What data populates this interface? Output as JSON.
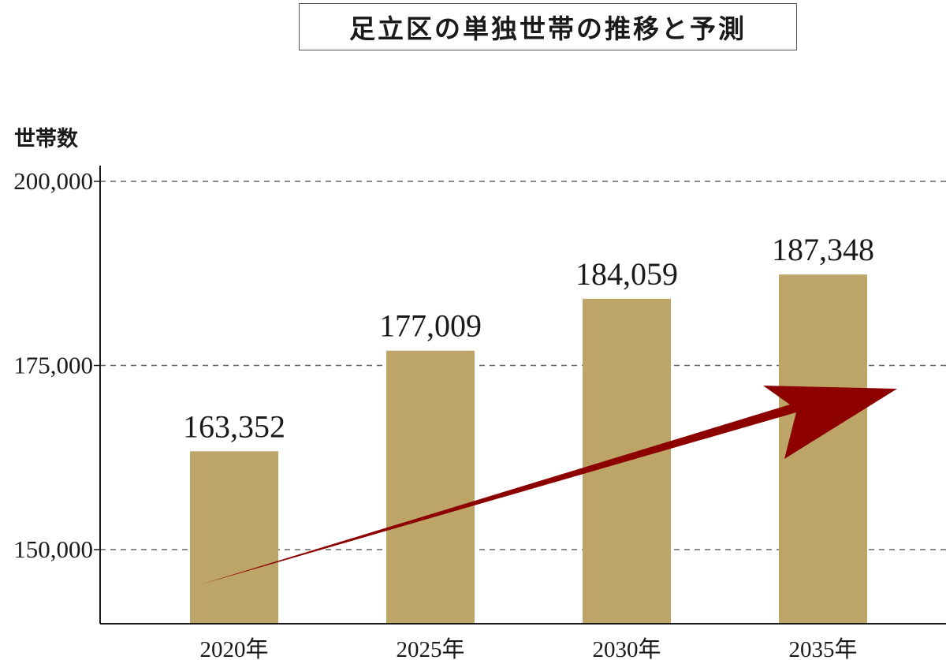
{
  "chart_data": {
    "type": "bar",
    "title": "足立区の単独世帯の推移と予測",
    "ylabel": "世帯数",
    "xlabel": "",
    "categories": [
      "2020年",
      "2025年",
      "2030年",
      "2035年"
    ],
    "values": [
      163352,
      177009,
      184059,
      187348
    ],
    "value_labels": [
      "163,352",
      "177,009",
      "184,059",
      "187,348"
    ],
    "y_ticks": [
      {
        "value": 150000,
        "label": "150,000"
      },
      {
        "value": 175000,
        "label": "175,000"
      },
      {
        "value": 200000,
        "label": "200,000"
      }
    ],
    "ylim": [
      140000,
      200000
    ],
    "grid": true,
    "legend": "none",
    "annotation": "upward-trend-arrow",
    "colors": {
      "bar": "#bda467",
      "arrow": "#8c0000",
      "grid": "#666666",
      "axis": "#1a1a1a"
    }
  }
}
